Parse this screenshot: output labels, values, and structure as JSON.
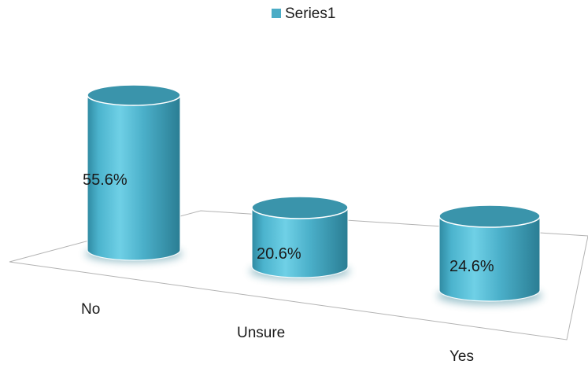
{
  "chart_data": {
    "type": "bar",
    "style": "3d-cylinder",
    "categories": [
      "No",
      "Unsure",
      "Yes"
    ],
    "series": [
      {
        "name": "Series1",
        "values": [
          55.6,
          20.6,
          24.6
        ]
      }
    ],
    "data_labels": [
      "55.6%",
      "20.6%",
      "24.6%"
    ],
    "unit": "%",
    "legend": {
      "placement": "top-center"
    },
    "grid": false,
    "colors": {
      "series1": "#4bacc6",
      "series1_top": "#3a94ab",
      "series1_shadow": "#2f7f93",
      "floor_line": "#b3b3b3"
    }
  }
}
